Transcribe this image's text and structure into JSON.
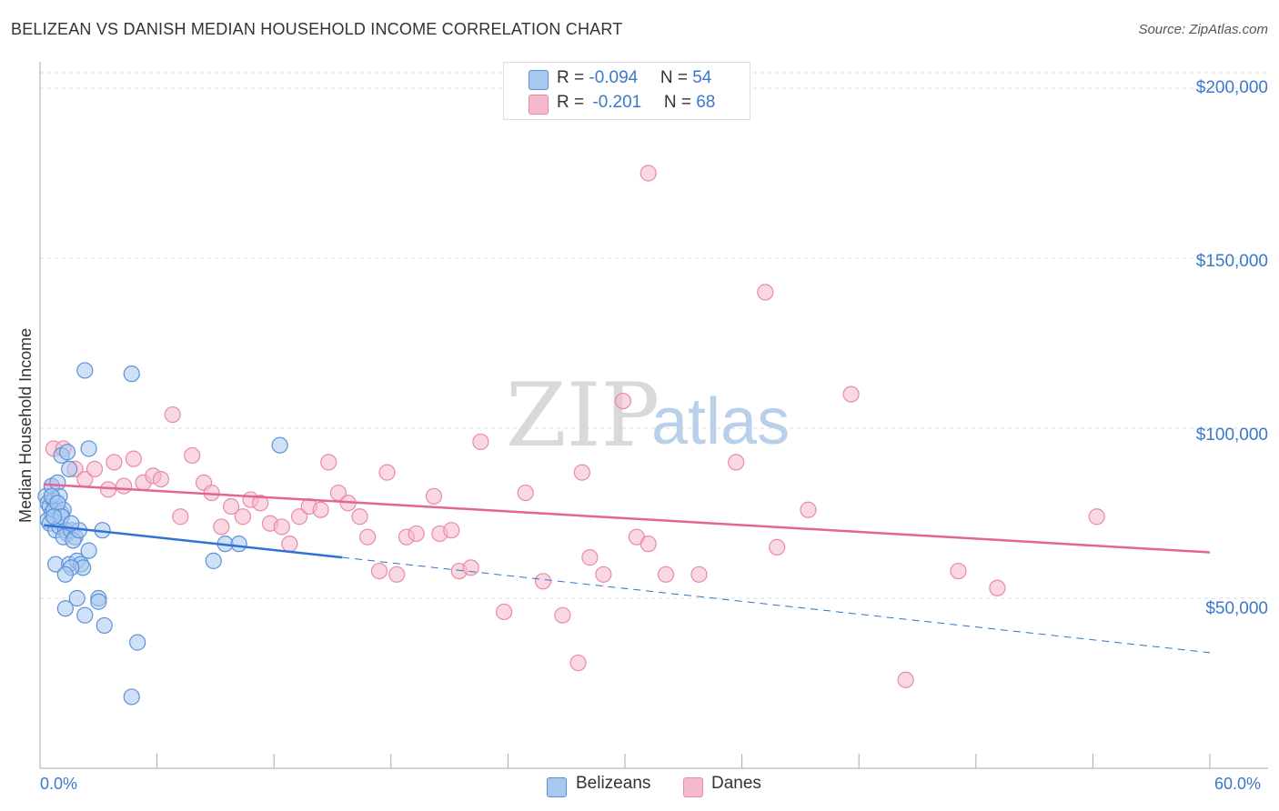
{
  "title": "BELIZEAN VS DANISH MEDIAN HOUSEHOLD INCOME CORRELATION CHART",
  "source": "Source: ZipAtlas.com",
  "watermark": {
    "zip": "ZIP",
    "atlas": "atlas"
  },
  "legend": {
    "row1": {
      "r_label": "R = ",
      "r_value": "-0.094",
      "n_label": "N = ",
      "n_value": "54"
    },
    "row2": {
      "r_label": "R = ",
      "r_value": "-0.201",
      "n_label": "N = ",
      "n_value": "68"
    }
  },
  "bottom_legend": {
    "belizeans": "Belizeans",
    "danes": "Danes"
  },
  "colors": {
    "blue_fill": "#a9c8f0",
    "blue_stroke": "#5b92d8",
    "blue_line": "#2f72d0",
    "pink_fill": "#f6b8cb",
    "pink_stroke": "#e98aa8",
    "pink_line": "#e2668f",
    "axis_text": "#3a78c9",
    "grid": "#dddddd"
  },
  "chart_data": {
    "type": "scatter",
    "title": "BELIZEAN VS DANISH MEDIAN HOUSEHOLD INCOME CORRELATION CHART",
    "xlabel": "",
    "ylabel": "Median Household Income",
    "xlim": [
      0,
      60
    ],
    "ylim": [
      0,
      205000
    ],
    "x_tick_labels": [
      "0.0%",
      "60.0%"
    ],
    "y_ticks": [
      50000,
      100000,
      150000,
      200000
    ],
    "y_tick_labels": [
      "$50,000",
      "$100,000",
      "$150,000",
      "$200,000"
    ],
    "series": [
      {
        "name": "Belizeans",
        "r": -0.094,
        "n": 54,
        "trend": {
          "x0": 0.2,
          "y0": 71500,
          "x1": 15.5,
          "y1": 62000,
          "dashed_to_x": 60,
          "dashed_to_y": 34000
        },
        "points": [
          [
            0.3,
            80000
          ],
          [
            0.4,
            78000
          ],
          [
            0.5,
            77000
          ],
          [
            0.6,
            75000
          ],
          [
            0.4,
            73000
          ],
          [
            0.7,
            79000
          ],
          [
            0.5,
            72000
          ],
          [
            0.8,
            70000
          ],
          [
            0.6,
            83000
          ],
          [
            0.9,
            84000
          ],
          [
            0.7,
            76000
          ],
          [
            1.0,
            80000
          ],
          [
            1.1,
            75000
          ],
          [
            1.2,
            76000
          ],
          [
            1.0,
            71000
          ],
          [
            1.3,
            70000
          ],
          [
            1.4,
            69000
          ],
          [
            1.2,
            68000
          ],
          [
            1.6,
            70000
          ],
          [
            1.8,
            68000
          ],
          [
            1.7,
            67000
          ],
          [
            0.8,
            60000
          ],
          [
            1.5,
            60000
          ],
          [
            1.9,
            61000
          ],
          [
            2.1,
            60000
          ],
          [
            2.2,
            59000
          ],
          [
            1.6,
            59000
          ],
          [
            1.3,
            57000
          ],
          [
            2.5,
            64000
          ],
          [
            3.2,
            70000
          ],
          [
            1.1,
            92000
          ],
          [
            1.4,
            93000
          ],
          [
            2.5,
            94000
          ],
          [
            1.5,
            88000
          ],
          [
            2.3,
            117000
          ],
          [
            4.7,
            116000
          ],
          [
            1.9,
            50000
          ],
          [
            3.0,
            50000
          ],
          [
            3.0,
            49000
          ],
          [
            1.3,
            47000
          ],
          [
            2.3,
            45000
          ],
          [
            3.3,
            42000
          ],
          [
            5.0,
            37000
          ],
          [
            4.7,
            21000
          ],
          [
            8.9,
            61000
          ],
          [
            9.5,
            66000
          ],
          [
            10.2,
            66000
          ],
          [
            12.3,
            95000
          ],
          [
            0.6,
            80000
          ],
          [
            0.9,
            78000
          ],
          [
            1.1,
            74000
          ],
          [
            0.7,
            74000
          ],
          [
            2.0,
            70000
          ],
          [
            1.6,
            72000
          ]
        ]
      },
      {
        "name": "Danes",
        "r": -0.201,
        "n": 68,
        "trend": {
          "x0": 0.2,
          "y0": 83500,
          "x1": 60,
          "y1": 63500
        },
        "points": [
          [
            0.6,
            83000
          ],
          [
            0.7,
            94000
          ],
          [
            1.2,
            94000
          ],
          [
            1.8,
            88000
          ],
          [
            2.3,
            85000
          ],
          [
            2.8,
            88000
          ],
          [
            3.5,
            82000
          ],
          [
            3.8,
            90000
          ],
          [
            4.3,
            83000
          ],
          [
            4.8,
            91000
          ],
          [
            5.3,
            84000
          ],
          [
            5.8,
            86000
          ],
          [
            6.2,
            85000
          ],
          [
            6.8,
            104000
          ],
          [
            7.2,
            74000
          ],
          [
            7.8,
            92000
          ],
          [
            8.4,
            84000
          ],
          [
            8.8,
            81000
          ],
          [
            9.3,
            71000
          ],
          [
            9.8,
            77000
          ],
          [
            10.4,
            74000
          ],
          [
            10.8,
            79000
          ],
          [
            11.3,
            78000
          ],
          [
            11.8,
            72000
          ],
          [
            12.4,
            71000
          ],
          [
            12.8,
            66000
          ],
          [
            13.3,
            74000
          ],
          [
            13.8,
            77000
          ],
          [
            14.4,
            76000
          ],
          [
            14.8,
            90000
          ],
          [
            15.3,
            81000
          ],
          [
            15.8,
            78000
          ],
          [
            16.4,
            74000
          ],
          [
            16.8,
            68000
          ],
          [
            17.4,
            58000
          ],
          [
            17.8,
            87000
          ],
          [
            18.3,
            57000
          ],
          [
            18.8,
            68000
          ],
          [
            19.3,
            69000
          ],
          [
            20.2,
            80000
          ],
          [
            20.5,
            69000
          ],
          [
            21.1,
            70000
          ],
          [
            21.5,
            58000
          ],
          [
            22.1,
            59000
          ],
          [
            22.6,
            96000
          ],
          [
            23.8,
            46000
          ],
          [
            24.9,
            81000
          ],
          [
            25.8,
            55000
          ],
          [
            26.8,
            45000
          ],
          [
            27.6,
            31000
          ],
          [
            28.2,
            62000
          ],
          [
            27.8,
            87000
          ],
          [
            28.9,
            57000
          ],
          [
            29.9,
            108000
          ],
          [
            30.6,
            68000
          ],
          [
            31.2,
            66000
          ],
          [
            31.2,
            175000
          ],
          [
            32.1,
            57000
          ],
          [
            33.8,
            57000
          ],
          [
            35.7,
            90000
          ],
          [
            37.2,
            140000
          ],
          [
            37.8,
            65000
          ],
          [
            39.4,
            76000
          ],
          [
            41.6,
            110000
          ],
          [
            44.4,
            26000
          ],
          [
            47.1,
            58000
          ],
          [
            49.1,
            53000
          ],
          [
            54.2,
            74000
          ]
        ]
      }
    ]
  }
}
